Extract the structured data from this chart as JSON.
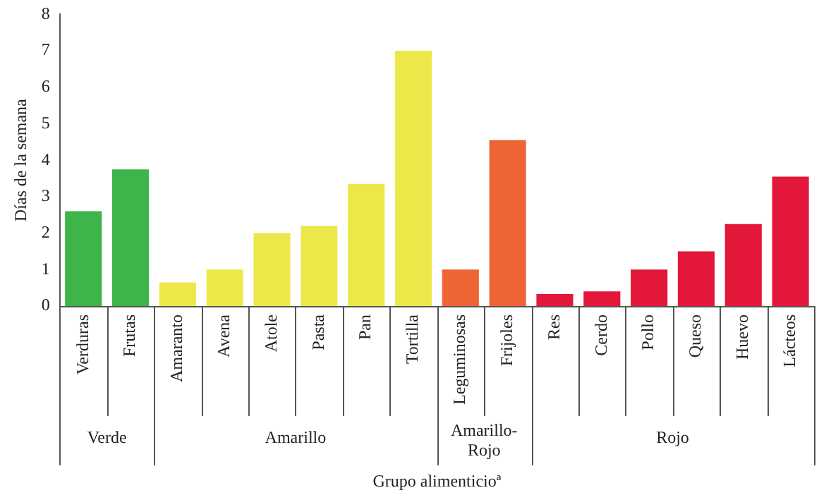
{
  "chart_data": {
    "type": "bar",
    "xlabel": "Grupo alimenticioª",
    "ylabel": "Días de la semana",
    "categories": [
      "Verduras",
      "Frutas",
      "Amaranto",
      "Avena",
      "Atole",
      "Pasta",
      "Pan",
      "Tortilla",
      "Leguminosas",
      "Frijoles",
      "Res",
      "Cerdo",
      "Pollo",
      "Queso",
      "Huevo",
      "Lácteos"
    ],
    "values": [
      2.6,
      3.75,
      0.65,
      1.0,
      2.0,
      2.2,
      3.35,
      7.0,
      1.0,
      4.55,
      0.33,
      0.4,
      1.0,
      1.5,
      2.25,
      3.55
    ],
    "colors": [
      "#3db54a",
      "#3db54a",
      "#ede84a",
      "#ede84a",
      "#ede84a",
      "#ede84a",
      "#ede84a",
      "#ede84a",
      "#ee6535",
      "#ee6535",
      "#e3173a",
      "#e3173a",
      "#e3173a",
      "#e3173a",
      "#e3173a",
      "#e3173a"
    ],
    "annotations": [
      "Verde",
      "Amarillo",
      "Amarillo-Rojo",
      "Rojo"
    ],
    "ylim": [
      0,
      8
    ],
    "yticks": [
      0,
      1,
      2,
      3,
      4,
      5,
      6,
      7,
      8
    ],
    "grid": false,
    "legend": false
  }
}
